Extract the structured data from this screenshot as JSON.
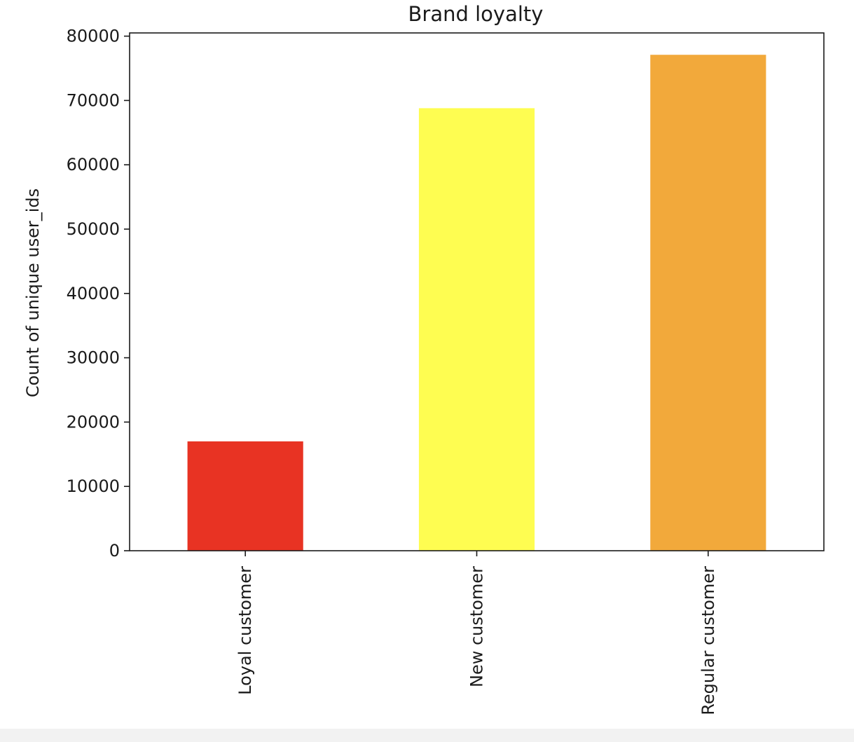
{
  "chart_data": {
    "type": "bar",
    "title": "Brand loyalty",
    "xlabel": "",
    "ylabel": "Count of unique user_ids",
    "categories": [
      "Loyal customer",
      "New customer",
      "Regular customer"
    ],
    "values": [
      17000,
      68800,
      77100
    ],
    "colors": [
      "#e83323",
      "#fefd51",
      "#f2a93b"
    ],
    "ylim": [
      0,
      80500
    ],
    "yticks": [
      0,
      10000,
      20000,
      30000,
      40000,
      50000,
      60000,
      70000,
      80000
    ],
    "ytick_labels": [
      "0",
      "10000",
      "20000",
      "30000",
      "40000",
      "50000",
      "60000",
      "70000",
      "80000"
    ],
    "grid": false,
    "legend": "none"
  }
}
